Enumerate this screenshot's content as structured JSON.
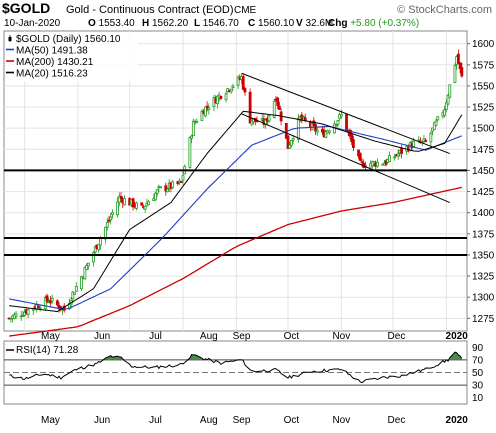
{
  "header": {
    "symbol": "$GOLD",
    "name": "Gold - Continuous Contract (EOD)",
    "exchange": "CME",
    "copyright": "© StockCharts.com",
    "date": "10-Jan-2020",
    "quote": [
      {
        "key": "O",
        "value": "1553.40"
      },
      {
        "key": "H",
        "value": "1562.20"
      },
      {
        "key": "L",
        "value": "1546.70"
      },
      {
        "key": "C",
        "value": "1560.10"
      },
      {
        "key": "V",
        "value": "32.6M"
      },
      {
        "key": "Chg",
        "value": "+5.80 (+0.37%)"
      }
    ],
    "colors": {
      "up": "#1e9b1e",
      "down": "#cc0000"
    }
  },
  "chart_data": [
    {
      "type": "candlestick",
      "legend": [
        {
          "label": "$GOLD (Daily) 1560.10",
          "color": "#000000",
          "style": "candle"
        },
        {
          "label": "MA(50) 1491.38",
          "color": "#1f3fbf",
          "style": "line"
        },
        {
          "label": "MA(200) 1430.21",
          "color": "#cc0000",
          "style": "line"
        },
        {
          "label": "MA(20) 1516.23",
          "color": "#000000",
          "style": "line"
        }
      ],
      "legend_position": "top-left",
      "x_ticks": [
        "May",
        "Jun",
        "Jul",
        "Aug",
        "Sep",
        "Oct",
        "Nov",
        "Dec",
        "2020"
      ],
      "y_ticks": [
        1275,
        1300,
        1325,
        1350,
        1375,
        1400,
        1425,
        1450,
        1475,
        1500,
        1525,
        1550,
        1575,
        1600
      ],
      "y_range": [
        1260,
        1615
      ],
      "grid": true,
      "price_waypoints": [
        {
          "date": "2019-04-22",
          "close": 1275
        },
        {
          "date": "2019-05-01",
          "close": 1283
        },
        {
          "date": "2019-05-15",
          "close": 1297
        },
        {
          "date": "2019-05-24",
          "close": 1285
        },
        {
          "date": "2019-06-04",
          "close": 1328
        },
        {
          "date": "2019-06-20",
          "close": 1395
        },
        {
          "date": "2019-06-25",
          "close": 1418
        },
        {
          "date": "2019-07-08",
          "close": 1405
        },
        {
          "date": "2019-07-18",
          "close": 1427
        },
        {
          "date": "2019-07-31",
          "close": 1435
        },
        {
          "date": "2019-08-07",
          "close": 1505
        },
        {
          "date": "2019-08-13",
          "close": 1522
        },
        {
          "date": "2019-08-23",
          "close": 1540
        },
        {
          "date": "2019-09-04",
          "close": 1560
        },
        {
          "date": "2019-09-09",
          "close": 1510
        },
        {
          "date": "2019-09-18",
          "close": 1506
        },
        {
          "date": "2019-09-24",
          "close": 1538
        },
        {
          "date": "2019-10-01",
          "close": 1478
        },
        {
          "date": "2019-10-08",
          "close": 1512
        },
        {
          "date": "2019-10-21",
          "close": 1492
        },
        {
          "date": "2019-11-01",
          "close": 1515
        },
        {
          "date": "2019-11-12",
          "close": 1457
        },
        {
          "date": "2019-11-27",
          "close": 1460
        },
        {
          "date": "2019-12-13",
          "close": 1482
        },
        {
          "date": "2019-12-20",
          "close": 1483
        },
        {
          "date": "2019-12-31",
          "close": 1524
        },
        {
          "date": "2020-01-07",
          "close": 1585
        },
        {
          "date": "2020-01-10",
          "close": 1560
        }
      ],
      "ma_waypoints": {
        "ma20": [
          {
            "date": "2019-04-22",
            "value": 1290
          },
          {
            "date": "2019-05-20",
            "value": 1283
          },
          {
            "date": "2019-06-10",
            "value": 1310
          },
          {
            "date": "2019-07-01",
            "value": 1380
          },
          {
            "date": "2019-07-25",
            "value": 1412
          },
          {
            "date": "2019-08-15",
            "value": 1470
          },
          {
            "date": "2019-09-05",
            "value": 1520
          },
          {
            "date": "2019-09-25",
            "value": 1515
          },
          {
            "date": "2019-10-21",
            "value": 1505
          },
          {
            "date": "2019-11-20",
            "value": 1485
          },
          {
            "date": "2019-12-15",
            "value": 1472
          },
          {
            "date": "2019-12-31",
            "value": 1482
          },
          {
            "date": "2020-01-10",
            "value": 1516
          }
        ],
        "ma50": [
          {
            "date": "2019-04-22",
            "value": 1298
          },
          {
            "date": "2019-05-25",
            "value": 1285
          },
          {
            "date": "2019-06-20",
            "value": 1310
          },
          {
            "date": "2019-07-20",
            "value": 1370
          },
          {
            "date": "2019-08-15",
            "value": 1428
          },
          {
            "date": "2019-09-10",
            "value": 1480
          },
          {
            "date": "2019-10-05",
            "value": 1500
          },
          {
            "date": "2019-10-25",
            "value": 1502
          },
          {
            "date": "2019-11-25",
            "value": 1487
          },
          {
            "date": "2019-12-20",
            "value": 1474
          },
          {
            "date": "2020-01-10",
            "value": 1491
          }
        ],
        "ma200": [
          {
            "date": "2019-04-22",
            "value": 1254
          },
          {
            "date": "2019-06-01",
            "value": 1265
          },
          {
            "date": "2019-07-01",
            "value": 1290
          },
          {
            "date": "2019-08-01",
            "value": 1322
          },
          {
            "date": "2019-09-01",
            "value": 1360
          },
          {
            "date": "2019-10-01",
            "value": 1386
          },
          {
            "date": "2019-11-01",
            "value": 1402
          },
          {
            "date": "2019-12-01",
            "value": 1412
          },
          {
            "date": "2020-01-10",
            "value": 1430
          }
        ]
      },
      "horizontal_levels": [
        1450,
        1370,
        1350
      ],
      "channel_lines": [
        {
          "start": {
            "date": "2019-09-04",
            "value": 1565
          },
          "end": {
            "date": "2020-01-03",
            "value": 1470
          }
        },
        {
          "start": {
            "date": "2019-09-04",
            "value": 1517
          },
          "end": {
            "date": "2020-01-03",
            "value": 1412
          }
        }
      ],
      "colors": {
        "up": "#1e9b1e",
        "down": "#cc0000",
        "ma50": "#1f3fbf",
        "ma200": "#cc0000",
        "ma20": "#000000",
        "level": "#000000"
      }
    },
    {
      "type": "line",
      "label": "RSI(14) 71.28",
      "y_ticks": [
        10,
        30,
        50,
        70,
        90
      ],
      "y_range": [
        0,
        100
      ],
      "reference_lines": [
        70,
        50,
        30
      ],
      "overbought_fill": "#4b8b4b",
      "rsi_waypoints": [
        {
          "date": "2019-04-22",
          "value": 45
        },
        {
          "date": "2019-05-01",
          "value": 40
        },
        {
          "date": "2019-05-12",
          "value": 48
        },
        {
          "date": "2019-05-22",
          "value": 42
        },
        {
          "date": "2019-05-31",
          "value": 55
        },
        {
          "date": "2019-06-12",
          "value": 64
        },
        {
          "date": "2019-06-20",
          "value": 76
        },
        {
          "date": "2019-06-26",
          "value": 73
        },
        {
          "date": "2019-07-02",
          "value": 60
        },
        {
          "date": "2019-07-15",
          "value": 58
        },
        {
          "date": "2019-07-30",
          "value": 62
        },
        {
          "date": "2019-08-07",
          "value": 78
        },
        {
          "date": "2019-08-13",
          "value": 72
        },
        {
          "date": "2019-08-23",
          "value": 65
        },
        {
          "date": "2019-09-04",
          "value": 70
        },
        {
          "date": "2019-09-10",
          "value": 52
        },
        {
          "date": "2019-09-24",
          "value": 54
        },
        {
          "date": "2019-10-01",
          "value": 42
        },
        {
          "date": "2019-10-15",
          "value": 52
        },
        {
          "date": "2019-11-01",
          "value": 55
        },
        {
          "date": "2019-11-12",
          "value": 35
        },
        {
          "date": "2019-11-25",
          "value": 42
        },
        {
          "date": "2019-12-06",
          "value": 45
        },
        {
          "date": "2019-12-20",
          "value": 55
        },
        {
          "date": "2020-01-02",
          "value": 70
        },
        {
          "date": "2020-01-06",
          "value": 82
        },
        {
          "date": "2020-01-10",
          "value": 71
        }
      ]
    }
  ]
}
